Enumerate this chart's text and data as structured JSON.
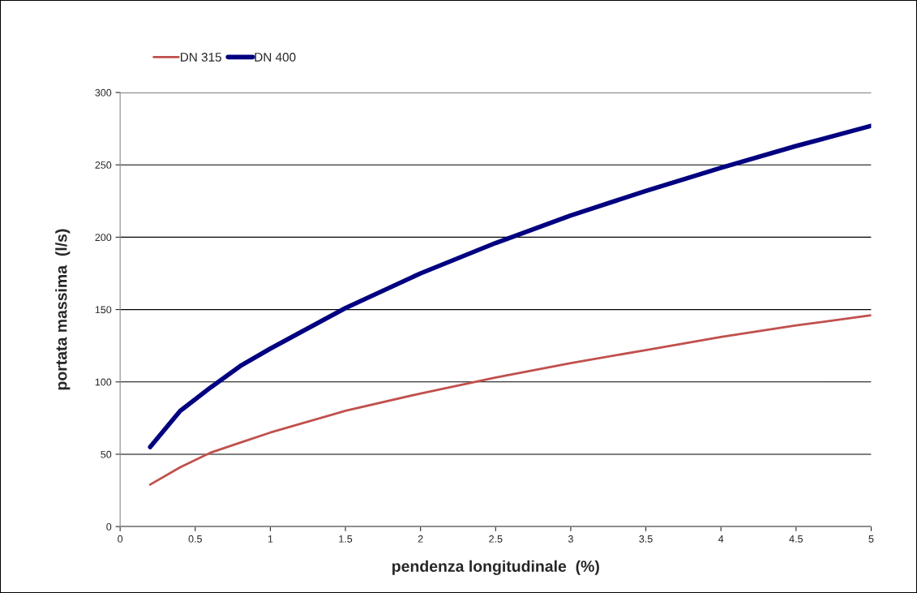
{
  "chart_data": {
    "type": "line",
    "xlabel": "pendenza longitudinale  (%)",
    "ylabel": "portata massima  (l/s)",
    "x": [
      0.2,
      0.4,
      0.6,
      0.8,
      1,
      1.5,
      2,
      2.5,
      3,
      3.5,
      4,
      4.5,
      5
    ],
    "series": [
      {
        "name": "DN 315",
        "color": "#c0504d",
        "values": [
          29,
          41,
          51,
          58,
          65,
          80,
          92,
          103,
          113,
          122,
          131,
          139,
          146
        ]
      },
      {
        "name": "DN 400",
        "color": "#000080",
        "values": [
          55,
          80,
          96,
          111,
          123,
          151,
          175,
          196,
          215,
          232,
          248,
          263,
          277
        ]
      }
    ],
    "xlim": [
      0,
      5
    ],
    "xticks": [
      0,
      0.5,
      1,
      1.5,
      2,
      2.5,
      3,
      3.5,
      4,
      4.5,
      5
    ],
    "ylim": [
      0,
      300
    ],
    "yticks": [
      0,
      50,
      100,
      150,
      200,
      250,
      300
    ],
    "grid": "y",
    "legend": "top left",
    "marker": "none",
    "line_style": "solid"
  }
}
